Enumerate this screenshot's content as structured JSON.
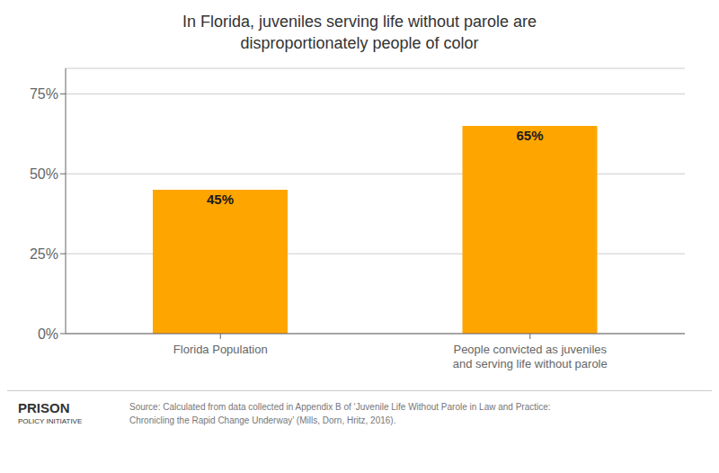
{
  "chart_data": {
    "type": "bar",
    "title": "In Florida, juveniles serving life without parole are\ndisproportionately people of color",
    "categories": [
      "Florida Population",
      "People convicted as juveniles\nand serving life without parole"
    ],
    "values": [
      45,
      65
    ],
    "value_labels": [
      "45%",
      "65%"
    ],
    "data_labels": true,
    "color": "#FFA500",
    "ylim": [
      0,
      83
    ],
    "yticks": [
      {
        "value": 0,
        "label": "0%"
      },
      {
        "value": 25,
        "label": "25%"
      },
      {
        "value": 50,
        "label": "50%"
      },
      {
        "value": 75,
        "label": "75%"
      }
    ],
    "grid": true,
    "annotations": [
      "Source: Calculated from data collected in Appendix B of ‘Juvenile Life Without Parole in Law and Practice:\nChronicling the Rapid Change Underway’ (Mills, Dorn, Hritz, 2016).",
      "PRISON",
      "POLICY INITIATIVE"
    ]
  }
}
